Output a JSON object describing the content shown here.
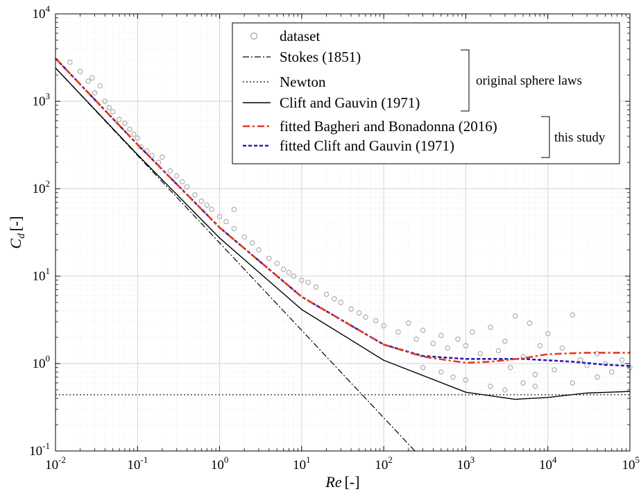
{
  "chart_data": {
    "type": "scatter",
    "xscale": "log",
    "yscale": "log",
    "xlim": [
      0.01,
      100000
    ],
    "ylim": [
      0.1,
      10000
    ],
    "grid": true,
    "legend_position": "top-right",
    "xlabel_main": "Re",
    "xlabel_unit": "[-]",
    "ylabel_main": "C",
    "ylabel_sub": "d",
    "ylabel_unit": "[-]",
    "x_ticks": [
      {
        "base": "10",
        "exp": "-2"
      },
      {
        "base": "10",
        "exp": "-1"
      },
      {
        "base": "10",
        "exp": "0"
      },
      {
        "base": "10",
        "exp": "1"
      },
      {
        "base": "10",
        "exp": "2"
      },
      {
        "base": "10",
        "exp": "3"
      },
      {
        "base": "10",
        "exp": "4"
      },
      {
        "base": "10",
        "exp": "5"
      }
    ],
    "y_ticks": [
      {
        "base": "10",
        "exp": "-1"
      },
      {
        "base": "10",
        "exp": "0"
      },
      {
        "base": "10",
        "exp": "1"
      },
      {
        "base": "10",
        "exp": "2"
      },
      {
        "base": "10",
        "exp": "3"
      },
      {
        "base": "10",
        "exp": "4"
      }
    ],
    "series": [
      {
        "name": "dataset",
        "kind": "scatter",
        "color": "#a0a0a0"
      },
      {
        "name": "Stokes (1851)",
        "kind": "line",
        "style": "dashdot",
        "color": "#000000"
      },
      {
        "name": "Newton",
        "kind": "line",
        "style": "dotted",
        "color": "#000000"
      },
      {
        "name": "Clift and Gauvin (1971)",
        "kind": "line",
        "style": "solid",
        "color": "#000000"
      },
      {
        "name": "fitted Bagheri and Bonadonna (2016)",
        "kind": "line",
        "style": "dashdot",
        "color": "#e8381b"
      },
      {
        "name": "fitted Clift and Gauvin (1971)",
        "kind": "line",
        "style": "dashed",
        "color": "#2b1ca8"
      }
    ],
    "legend_groups": [
      {
        "label": "original sphere laws",
        "series": [
          "Stokes (1851)",
          "Newton",
          "Clift and Gauvin (1971)"
        ]
      },
      {
        "label": "this study",
        "series": [
          "fitted Bagheri and Bonadonna (2016)",
          "fitted Clift and Gauvin (1971)"
        ]
      }
    ],
    "reference_curves": {
      "stokes": {
        "formula": "Cd = 24/Re",
        "points": [
          [
            0.01,
            2400
          ],
          [
            0.1,
            240
          ],
          [
            1,
            24
          ],
          [
            10,
            2.4
          ],
          [
            100,
            0.24
          ],
          [
            240,
            0.1
          ]
        ]
      },
      "newton": {
        "formula": "Cd = 0.44",
        "points": [
          [
            0.01,
            0.44
          ],
          [
            100000,
            0.44
          ]
        ]
      },
      "clift_gauvin": {
        "points": [
          [
            0.01,
            2410
          ],
          [
            0.1,
            245
          ],
          [
            1,
            27.3
          ],
          [
            10,
            4.15
          ],
          [
            100,
            1.09
          ],
          [
            1000,
            0.47
          ],
          [
            4000,
            0.39
          ],
          [
            10000,
            0.41
          ],
          [
            30000,
            0.46
          ],
          [
            100000,
            0.48
          ]
        ]
      }
    },
    "fitted_curves": {
      "bagheri_bonadonna": {
        "points": [
          [
            0.01,
            3100
          ],
          [
            0.1,
            320
          ],
          [
            1,
            36
          ],
          [
            10,
            5.8
          ],
          [
            100,
            1.65
          ],
          [
            300,
            1.2
          ],
          [
            1000,
            1.02
          ],
          [
            2000,
            1.05
          ],
          [
            5000,
            1.15
          ],
          [
            10000,
            1.28
          ],
          [
            30000,
            1.33
          ],
          [
            100000,
            1.33
          ]
        ]
      },
      "clift_gauvin_fitted": {
        "points": [
          [
            0.01,
            3100
          ],
          [
            0.1,
            320
          ],
          [
            1,
            36
          ],
          [
            10,
            5.8
          ],
          [
            100,
            1.65
          ],
          [
            300,
            1.22
          ],
          [
            1000,
            1.13
          ],
          [
            5000,
            1.13
          ],
          [
            20000,
            1.05
          ],
          [
            50000,
            0.97
          ],
          [
            100000,
            0.94
          ]
        ]
      }
    },
    "scatter_data": {
      "description_trend": "points scattered above the fitted curves; spread widens above Re ~ 100",
      "points": [
        [
          0.015,
          2800
        ],
        [
          0.02,
          2200
        ],
        [
          0.025,
          1700
        ],
        [
          0.028,
          1850
        ],
        [
          0.03,
          1250
        ],
        [
          0.035,
          1500
        ],
        [
          0.04,
          1000
        ],
        [
          0.045,
          850
        ],
        [
          0.05,
          760
        ],
        [
          0.06,
          620
        ],
        [
          0.07,
          560
        ],
        [
          0.08,
          480
        ],
        [
          0.09,
          420
        ],
        [
          0.1,
          380
        ],
        [
          0.11,
          300
        ],
        [
          0.13,
          270
        ],
        [
          0.15,
          240
        ],
        [
          0.18,
          200
        ],
        [
          0.2,
          230
        ],
        [
          0.25,
          160
        ],
        [
          0.3,
          140
        ],
        [
          0.35,
          120
        ],
        [
          0.4,
          105
        ],
        [
          0.5,
          85
        ],
        [
          0.6,
          72
        ],
        [
          0.7,
          65
        ],
        [
          0.8,
          58
        ],
        [
          1.0,
          48
        ],
        [
          1.5,
          58
        ],
        [
          1.2,
          42
        ],
        [
          1.5,
          35
        ],
        [
          2,
          28
        ],
        [
          2.5,
          24
        ],
        [
          3,
          20
        ],
        [
          4,
          16
        ],
        [
          5,
          14
        ],
        [
          6,
          12
        ],
        [
          7,
          11
        ],
        [
          8,
          10
        ],
        [
          10,
          9
        ],
        [
          12,
          8.5
        ],
        [
          15,
          7.5
        ],
        [
          20,
          6.2
        ],
        [
          25,
          5.5
        ],
        [
          30,
          5
        ],
        [
          40,
          4.2
        ],
        [
          50,
          3.8
        ],
        [
          60,
          3.4
        ],
        [
          80,
          3.1
        ],
        [
          100,
          2.7
        ],
        [
          150,
          2.3
        ],
        [
          200,
          2.9
        ],
        [
          250,
          1.9
        ],
        [
          300,
          2.4
        ],
        [
          400,
          1.7
        ],
        [
          500,
          2.1
        ],
        [
          600,
          1.5
        ],
        [
          800,
          1.9
        ],
        [
          1000,
          1.6
        ],
        [
          1200,
          2.3
        ],
        [
          1500,
          1.3
        ],
        [
          2000,
          2.6
        ],
        [
          2500,
          1.4
        ],
        [
          3000,
          1.8
        ],
        [
          3500,
          0.9
        ],
        [
          4000,
          3.5
        ],
        [
          5000,
          1.2
        ],
        [
          6000,
          2.9
        ],
        [
          7000,
          0.75
        ],
        [
          8000,
          1.6
        ],
        [
          10000,
          2.2
        ],
        [
          12000,
          0.85
        ],
        [
          15000,
          1.5
        ],
        [
          20000,
          3.6
        ],
        [
          25000,
          1.1
        ],
        [
          30000,
          0.95
        ],
        [
          40000,
          1.3
        ],
        [
          50000,
          1.0
        ],
        [
          60000,
          0.8
        ],
        [
          80000,
          1.1
        ],
        [
          100000,
          0.9
        ],
        [
          300,
          0.9
        ],
        [
          500,
          0.8
        ],
        [
          700,
          0.7
        ],
        [
          1000,
          0.65
        ],
        [
          2000,
          0.55
        ],
        [
          3000,
          0.5
        ],
        [
          5000,
          0.6
        ],
        [
          7000,
          0.55
        ],
        [
          20000,
          0.6
        ],
        [
          40000,
          0.7
        ]
      ]
    }
  }
}
